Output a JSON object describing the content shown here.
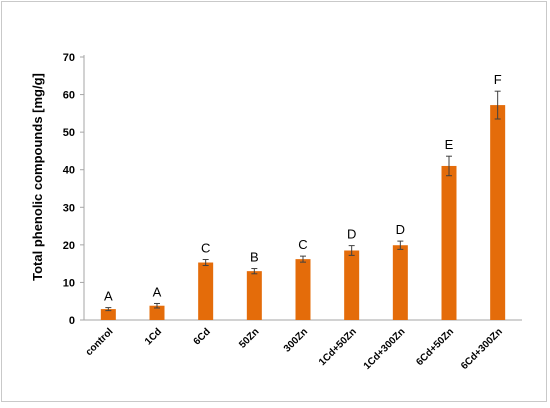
{
  "chart_data": {
    "type": "bar",
    "ylabel": "Total phenolic compounds [mg/g]",
    "xlabel": "",
    "ylim": [
      0,
      70
    ],
    "y_ticks": [
      0,
      10,
      20,
      30,
      40,
      50,
      60,
      70
    ],
    "grid": false,
    "legend": "none",
    "categories": [
      "control",
      "1Cd",
      "6Cd",
      "50Zn",
      "300Zn",
      "1Cd+50Zn",
      "1Cd+300Zn",
      "6Cd+50Zn",
      "6Cd+300Zn"
    ],
    "values": [
      2.9,
      3.8,
      15.3,
      13.0,
      16.2,
      18.5,
      19.9,
      41.0,
      57.2
    ],
    "errors": [
      0.4,
      0.6,
      0.8,
      0.7,
      0.8,
      1.3,
      1.1,
      2.6,
      3.7
    ],
    "significance_letters": [
      "A",
      "A",
      "C",
      "B",
      "C",
      "D",
      "D",
      "E",
      "F"
    ],
    "bar_color": "#e46c0a"
  }
}
